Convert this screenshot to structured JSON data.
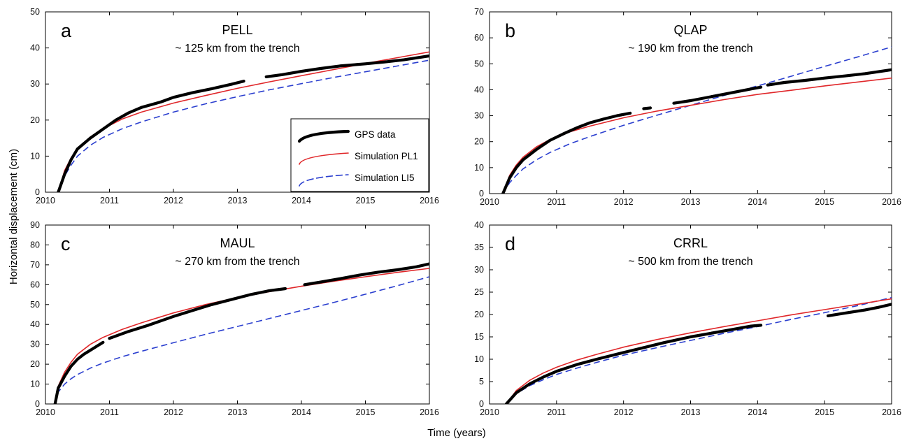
{
  "figure": {
    "ylabel": "Horizontal displacement (cm)",
    "xlabel": "Time (years)"
  },
  "legend": {
    "entries": [
      {
        "label": "GPS data",
        "color": "#000000",
        "style": "dots"
      },
      {
        "label": "Simulation PL1",
        "color": "#e0272a",
        "style": "solid"
      },
      {
        "label": "Simulation LI5",
        "color": "#2b3fcf",
        "style": "dashed"
      }
    ]
  },
  "chart_data": [
    {
      "type": "line",
      "panel": "a",
      "title": "PELL",
      "subtitle": "~ 125 km from the trench",
      "xlim": [
        2010,
        2016
      ],
      "ylim": [
        0,
        50
      ],
      "xticks": [
        2010,
        2011,
        2012,
        2013,
        2014,
        2015,
        2016
      ],
      "yticks": [
        0,
        10,
        20,
        30,
        40,
        50
      ],
      "series": [
        {
          "name": "GPS data",
          "kind": "dots",
          "segments": [
            {
              "x": [
                2010.2,
                2010.3,
                2010.4,
                2010.5,
                2010.7,
                2010.9,
                2011.1,
                2011.3,
                2011.5,
                2011.8,
                2012.0,
                2012.3,
                2012.6,
                2012.9,
                2013.1
              ],
              "y": [
                0,
                5,
                9,
                12,
                15,
                17.5,
                20,
                22,
                23.5,
                25,
                26.3,
                27.6,
                28.7,
                29.9,
                30.8
              ]
            },
            {
              "x": [
                2013.45,
                2013.7,
                2014.0,
                2014.3,
                2014.6,
                2015.0,
                2015.3,
                2015.6,
                2016.0
              ],
              "y": [
                32,
                32.6,
                33.5,
                34.3,
                35,
                35.6,
                36.1,
                36.7,
                37.8
              ]
            }
          ]
        },
        {
          "name": "Simulation PL1",
          "kind": "solid",
          "x": [
            2010.2,
            2010.3,
            2010.4,
            2010.5,
            2010.7,
            2010.9,
            2011.2,
            2011.5,
            2012.0,
            2012.5,
            2013.0,
            2013.5,
            2014.0,
            2014.5,
            2015.0,
            2015.5,
            2016.0
          ],
          "y": [
            0,
            6,
            9.5,
            12,
            15.3,
            17.6,
            20.3,
            22.2,
            24.7,
            26.8,
            28.8,
            30.6,
            32.3,
            34,
            35.7,
            37.3,
            38.9
          ]
        },
        {
          "name": "Simulation LI5",
          "kind": "dashed",
          "x": [
            2010.2,
            2010.3,
            2010.4,
            2010.5,
            2010.7,
            2010.9,
            2011.2,
            2011.5,
            2012.0,
            2012.5,
            2013.0,
            2013.5,
            2014.0,
            2014.5,
            2015.0,
            2015.5,
            2016.0
          ],
          "y": [
            0,
            4.5,
            7.5,
            10,
            13,
            15.2,
            17.6,
            19.5,
            22.2,
            24.5,
            26.5,
            28.4,
            30.1,
            31.8,
            33.4,
            35,
            36.6
          ]
        }
      ]
    },
    {
      "type": "line",
      "panel": "b",
      "title": "QLAP",
      "subtitle": "~ 190 km from the trench",
      "xlim": [
        2010,
        2016
      ],
      "ylim": [
        0,
        70
      ],
      "xticks": [
        2010,
        2011,
        2012,
        2013,
        2014,
        2015,
        2016
      ],
      "yticks": [
        0,
        10,
        20,
        30,
        40,
        50,
        60,
        70
      ],
      "series": [
        {
          "name": "GPS data",
          "kind": "dots",
          "segments": [
            {
              "x": [
                2010.2,
                2010.3,
                2010.4,
                2010.5,
                2010.7,
                2010.9,
                2011.1,
                2011.3,
                2011.5,
                2011.7,
                2011.9,
                2012.1
              ],
              "y": [
                0,
                6,
                10,
                13,
                17,
                20.5,
                23,
                25.3,
                27.3,
                28.7,
                30,
                31
              ]
            },
            {
              "x": [
                2012.3,
                2012.4
              ],
              "y": [
                32.7,
                33
              ]
            },
            {
              "x": [
                2012.75,
                2013.0,
                2013.3,
                2013.6,
                2013.9,
                2014.05
              ],
              "y": [
                34.8,
                35.8,
                37.3,
                38.8,
                40.3,
                41
              ]
            },
            {
              "x": [
                2014.15,
                2014.4,
                2014.7,
                2015.0,
                2015.3,
                2015.6,
                2016.0
              ],
              "y": [
                41.8,
                42.8,
                43.6,
                44.5,
                45.3,
                46.2,
                47.7
              ]
            }
          ]
        },
        {
          "name": "Simulation PL1",
          "kind": "solid",
          "x": [
            2010.2,
            2010.3,
            2010.4,
            2010.5,
            2010.7,
            2010.9,
            2011.2,
            2011.5,
            2012.0,
            2012.5,
            2013.0,
            2013.5,
            2014.0,
            2014.5,
            2015.0,
            2015.5,
            2016.0
          ],
          "y": [
            0,
            7,
            11,
            14,
            18,
            20.8,
            23.8,
            26,
            29.2,
            31.8,
            34,
            36.2,
            38.2,
            39.8,
            41.5,
            43,
            44.5
          ]
        },
        {
          "name": "Simulation LI5",
          "kind": "dashed",
          "x": [
            2010.2,
            2010.3,
            2010.4,
            2010.5,
            2010.7,
            2010.9,
            2011.2,
            2011.5,
            2012.0,
            2012.5,
            2013.0,
            2013.5,
            2014.0,
            2014.5,
            2015.0,
            2015.5,
            2016.0
          ],
          "y": [
            0,
            4.2,
            7,
            9.5,
            13,
            15.8,
            19.2,
            22,
            26.3,
            30.2,
            34,
            37.8,
            41.5,
            45.2,
            49,
            52.7,
            56.5
          ]
        }
      ]
    },
    {
      "type": "line",
      "panel": "c",
      "title": "MAUL",
      "subtitle": "~ 270 km from the trench",
      "xlim": [
        2010,
        2016
      ],
      "ylim": [
        0,
        90
      ],
      "xticks": [
        2010,
        2011,
        2012,
        2013,
        2014,
        2015,
        2016
      ],
      "yticks": [
        0,
        10,
        20,
        30,
        40,
        50,
        60,
        70,
        80,
        90
      ],
      "series": [
        {
          "name": "GPS data",
          "kind": "dots",
          "segments": [
            {
              "x": [
                2010.15,
                2010.2,
                2010.3,
                2010.4,
                2010.5,
                2010.6,
                2010.75,
                2010.9
              ],
              "y": [
                0,
                8,
                14,
                19,
                22.5,
                25,
                28,
                31
              ]
            },
            {
              "x": [
                2011.0,
                2011.3,
                2011.6,
                2012.0,
                2012.3,
                2012.6,
                2012.9,
                2013.2,
                2013.5,
                2013.75
              ],
              "y": [
                33,
                36.5,
                39.5,
                44,
                47,
                50,
                52.5,
                55,
                57,
                58
              ]
            },
            {
              "x": [
                2014.05,
                2014.3,
                2014.6,
                2014.9,
                2015.2,
                2015.5,
                2015.8,
                2016.0
              ],
              "y": [
                60,
                61.3,
                63,
                64.8,
                66.3,
                67.5,
                69,
                70.5
              ]
            }
          ]
        },
        {
          "name": "Simulation PL1",
          "kind": "solid",
          "x": [
            2010.15,
            2010.2,
            2010.3,
            2010.4,
            2010.5,
            2010.7,
            2010.9,
            2011.2,
            2011.5,
            2012.0,
            2012.5,
            2013.0,
            2013.5,
            2014.0,
            2014.5,
            2015.0,
            2015.5,
            2016.0
          ],
          "y": [
            0,
            9,
            16,
            21,
            25,
            30,
            33.5,
            37.5,
            40.8,
            45.8,
            50,
            53.5,
            56.5,
            59.2,
            61.7,
            64,
            66.2,
            68.2
          ]
        },
        {
          "name": "Simulation LI5",
          "kind": "dashed",
          "x": [
            2010.15,
            2010.2,
            2010.3,
            2010.4,
            2010.5,
            2010.7,
            2010.9,
            2011.2,
            2011.5,
            2012.0,
            2012.5,
            2013.0,
            2013.5,
            2014.0,
            2014.5,
            2015.0,
            2015.5,
            2016.0
          ],
          "y": [
            0,
            6,
            10,
            12.7,
            14.8,
            18,
            20.6,
            23.8,
            26.5,
            30.8,
            35,
            39,
            43,
            47,
            51,
            55.2,
            59.5,
            64
          ]
        }
      ]
    },
    {
      "type": "line",
      "panel": "d",
      "title": "CRRL",
      "subtitle": "~ 500 km from the trench",
      "xlim": [
        2010,
        2016
      ],
      "ylim": [
        0,
        40
      ],
      "xticks": [
        2010,
        2011,
        2012,
        2013,
        2014,
        2015,
        2016
      ],
      "yticks": [
        0,
        5,
        10,
        15,
        20,
        25,
        30,
        35,
        40
      ],
      "series": [
        {
          "name": "GPS data",
          "kind": "dots",
          "segments": [
            {
              "x": [
                2010.25,
                2010.4,
                2010.6,
                2010.8,
                2011.0,
                2011.3,
                2011.6,
                2012.0,
                2012.3,
                2012.6,
                2013.0,
                2013.3,
                2013.6,
                2013.9,
                2014.05
              ],
              "y": [
                0,
                2.5,
                4.5,
                6,
                7.3,
                8.8,
                10,
                11.5,
                12.6,
                13.7,
                15,
                15.8,
                16.6,
                17.4,
                17.6
              ]
            },
            {
              "x": [
                2015.05,
                2015.3,
                2015.6,
                2015.8,
                2016.0
              ],
              "y": [
                19.7,
                20.3,
                21,
                21.6,
                22.3
              ]
            }
          ]
        },
        {
          "name": "Simulation PL1",
          "kind": "solid",
          "x": [
            2010.25,
            2010.4,
            2010.6,
            2010.8,
            2011.0,
            2011.3,
            2011.6,
            2012.0,
            2012.5,
            2013.0,
            2013.5,
            2014.0,
            2014.5,
            2015.0,
            2015.5,
            2016.0
          ],
          "y": [
            0,
            3,
            5.3,
            6.9,
            8.2,
            9.8,
            11.1,
            12.7,
            14.4,
            15.9,
            17.3,
            18.6,
            19.9,
            21.1,
            22.3,
            23.5
          ]
        },
        {
          "name": "Simulation LI5",
          "kind": "dashed",
          "x": [
            2010.25,
            2010.4,
            2010.6,
            2010.8,
            2011.0,
            2011.3,
            2011.6,
            2012.0,
            2012.5,
            2013.0,
            2013.5,
            2014.0,
            2014.5,
            2015.0,
            2015.5,
            2016.0
          ],
          "y": [
            0,
            2.3,
            4.1,
            5.4,
            6.6,
            8,
            9.3,
            10.9,
            12.6,
            14.2,
            15.8,
            17.3,
            18.9,
            20.4,
            22,
            23.8
          ]
        }
      ]
    }
  ]
}
